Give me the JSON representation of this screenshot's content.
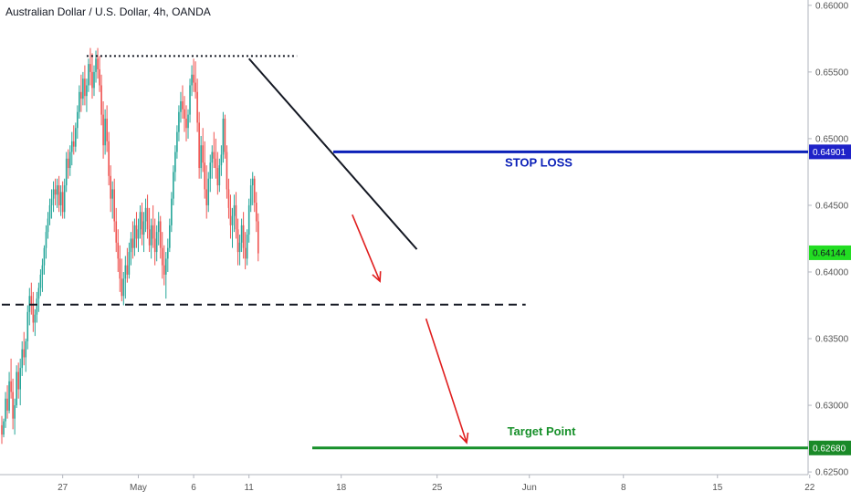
{
  "header": {
    "title": "Australian Dollar / U.S. Dollar, 4h, OANDA"
  },
  "chart_data": {
    "type": "candlestick",
    "title": "Australian Dollar / U.S. Dollar, 4h, OANDA",
    "y_axis": {
      "ylim": [
        0.6248,
        0.6604
      ],
      "ticks": [
        0.66,
        0.655,
        0.65,
        0.645,
        0.64,
        0.635,
        0.63,
        0.625
      ],
      "tick_labels": [
        "0.66000",
        "0.65500",
        "0.65000",
        "0.64500",
        "0.64000",
        "0.63500",
        "0.63000",
        "0.62500"
      ]
    },
    "x_axis": {
      "ticks": [
        {
          "label": "27",
          "bar": 33
        },
        {
          "label": "May",
          "bar": 74
        },
        {
          "label": "6",
          "bar": 104
        },
        {
          "label": "11",
          "bar": 134
        },
        {
          "label": "18",
          "bar": 184
        },
        {
          "label": "25",
          "bar": 236
        },
        {
          "label": "Jun",
          "bar": 286
        },
        {
          "label": "8",
          "bar": 337
        },
        {
          "label": "15",
          "bar": 388
        },
        {
          "label": "22",
          "bar": 438
        }
      ]
    },
    "price_badges": [
      {
        "label": "0.64901",
        "value": 0.64901,
        "color": "#1e22c8",
        "text_color": "#ffffff"
      },
      {
        "label": "0.64144",
        "value": 0.64144,
        "color": "#22dd22",
        "text_color": "#131722"
      },
      {
        "label": "0.62680",
        "value": 0.6268,
        "color": "#1a8a28",
        "text_color": "#ffffff"
      }
    ],
    "annotations": {
      "stop_loss": {
        "label": "STOP LOSS",
        "value": 0.64901,
        "color": "#0b20b8"
      },
      "target": {
        "label": "Target Point",
        "value": 0.6268,
        "color": "#17902a"
      },
      "resistance_dotted": {
        "value": 0.6562,
        "bar_start": 46,
        "bar_end": 160
      },
      "support_dashed": {
        "value": 0.63755,
        "bar_start": 0,
        "bar_end": 284
      },
      "trendline": {
        "from": {
          "bar": 134,
          "value": 0.656
        },
        "to": {
          "bar": 225,
          "value": 0.6417
        }
      },
      "arrows": [
        {
          "from": {
            "bar": 190,
            "value": 0.6443
          },
          "to": {
            "bar": 205,
            "value": 0.6393
          }
        },
        {
          "from": {
            "bar": 230,
            "value": 0.6365
          },
          "to": {
            "bar": 252,
            "value": 0.6272
          }
        }
      ]
    },
    "colors": {
      "up": "#26a69a",
      "down": "#ef5350"
    },
    "candles": [
      [
        0.6285,
        0.6292,
        0.6271,
        0.6278
      ],
      [
        0.6278,
        0.629,
        0.6276,
        0.6288
      ],
      [
        0.6288,
        0.631,
        0.6283,
        0.6305
      ],
      [
        0.6305,
        0.6315,
        0.629,
        0.6296
      ],
      [
        0.6296,
        0.6325,
        0.6294,
        0.6318
      ],
      [
        0.6318,
        0.6335,
        0.6305,
        0.631
      ],
      [
        0.631,
        0.632,
        0.6282,
        0.629
      ],
      [
        0.629,
        0.6305,
        0.6278,
        0.63
      ],
      [
        0.63,
        0.633,
        0.6298,
        0.6325
      ],
      [
        0.6325,
        0.6332,
        0.6305,
        0.6312
      ],
      [
        0.6312,
        0.6335,
        0.63,
        0.6328
      ],
      [
        0.6328,
        0.6348,
        0.6322,
        0.6342
      ],
      [
        0.6342,
        0.6355,
        0.633,
        0.6336
      ],
      [
        0.6336,
        0.635,
        0.6325,
        0.6348
      ],
      [
        0.6348,
        0.6375,
        0.6342,
        0.637
      ],
      [
        0.637,
        0.6388,
        0.636,
        0.6382
      ],
      [
        0.6382,
        0.6392,
        0.6368,
        0.6375
      ],
      [
        0.6375,
        0.6385,
        0.6355,
        0.6362
      ],
      [
        0.6362,
        0.6372,
        0.6352,
        0.6368
      ],
      [
        0.6368,
        0.6385,
        0.6362,
        0.638
      ],
      [
        0.638,
        0.6392,
        0.637,
        0.6388
      ],
      [
        0.6388,
        0.6402,
        0.6382,
        0.6398
      ],
      [
        0.6398,
        0.641,
        0.6385,
        0.6405
      ],
      [
        0.6405,
        0.642,
        0.6398,
        0.6418
      ],
      [
        0.6418,
        0.6435,
        0.641,
        0.643
      ],
      [
        0.643,
        0.6445,
        0.6425,
        0.644
      ],
      [
        0.644,
        0.6455,
        0.6435,
        0.645
      ],
      [
        0.645,
        0.6462,
        0.644,
        0.6455
      ],
      [
        0.6455,
        0.6468,
        0.6445,
        0.6462
      ],
      [
        0.6462,
        0.647,
        0.645,
        0.6458
      ],
      [
        0.6458,
        0.647,
        0.6448,
        0.6465
      ],
      [
        0.6465,
        0.6472,
        0.6445,
        0.645
      ],
      [
        0.645,
        0.6465,
        0.6442,
        0.646
      ],
      [
        0.646,
        0.6468,
        0.644,
        0.6445
      ],
      [
        0.6445,
        0.647,
        0.644,
        0.6465
      ],
      [
        0.6465,
        0.649,
        0.646,
        0.6485
      ],
      [
        0.6485,
        0.6492,
        0.647,
        0.6478
      ],
      [
        0.6478,
        0.6495,
        0.6472,
        0.649
      ],
      [
        0.649,
        0.6505,
        0.648,
        0.6498
      ],
      [
        0.6498,
        0.651,
        0.6488,
        0.6494
      ],
      [
        0.6494,
        0.6512,
        0.649,
        0.6508
      ],
      [
        0.6508,
        0.6525,
        0.65,
        0.652
      ],
      [
        0.652,
        0.654,
        0.6515,
        0.6535
      ],
      [
        0.6535,
        0.6548,
        0.652,
        0.653
      ],
      [
        0.653,
        0.655,
        0.6525,
        0.6545
      ],
      [
        0.6545,
        0.6555,
        0.6525,
        0.6532
      ],
      [
        0.6532,
        0.6545,
        0.652,
        0.654
      ],
      [
        0.654,
        0.656,
        0.6535,
        0.6556
      ],
      [
        0.6556,
        0.6568,
        0.654,
        0.655
      ],
      [
        0.655,
        0.6564,
        0.653,
        0.6538
      ],
      [
        0.6538,
        0.6555,
        0.6532,
        0.655
      ],
      [
        0.655,
        0.6566,
        0.6542,
        0.656
      ],
      [
        0.656,
        0.6568,
        0.6545,
        0.6552
      ],
      [
        0.6552,
        0.6562,
        0.6535,
        0.654
      ],
      [
        0.654,
        0.6548,
        0.651,
        0.6518
      ],
      [
        0.6518,
        0.6528,
        0.6485,
        0.6495
      ],
      [
        0.6495,
        0.6522,
        0.6488,
        0.6515
      ],
      [
        0.6515,
        0.6525,
        0.649,
        0.6498
      ],
      [
        0.6498,
        0.6505,
        0.6465,
        0.6472
      ],
      [
        0.6472,
        0.648,
        0.6445,
        0.6455
      ],
      [
        0.6455,
        0.6468,
        0.644,
        0.6462
      ],
      [
        0.6462,
        0.647,
        0.643,
        0.6438
      ],
      [
        0.6438,
        0.6448,
        0.6415,
        0.6422
      ],
      [
        0.6422,
        0.6432,
        0.64,
        0.641
      ],
      [
        0.641,
        0.642,
        0.6385,
        0.6395
      ],
      [
        0.6395,
        0.641,
        0.6378,
        0.6382
      ],
      [
        0.6382,
        0.64,
        0.6375,
        0.6395
      ],
      [
        0.6395,
        0.6412,
        0.638,
        0.6405
      ],
      [
        0.6405,
        0.6418,
        0.6392,
        0.6398
      ],
      [
        0.6398,
        0.6422,
        0.6395,
        0.6415
      ],
      [
        0.6415,
        0.643,
        0.6405,
        0.6425
      ],
      [
        0.6425,
        0.6438,
        0.641,
        0.6418
      ],
      [
        0.6418,
        0.644,
        0.6412,
        0.6435
      ],
      [
        0.6435,
        0.6445,
        0.6418,
        0.6425
      ],
      [
        0.6425,
        0.644,
        0.6415,
        0.6432
      ],
      [
        0.6432,
        0.645,
        0.6425,
        0.6445
      ],
      [
        0.6445,
        0.6452,
        0.642,
        0.6428
      ],
      [
        0.6428,
        0.6445,
        0.6415,
        0.6438
      ],
      [
        0.6438,
        0.6455,
        0.643,
        0.6448
      ],
      [
        0.6448,
        0.6458,
        0.6425,
        0.6432
      ],
      [
        0.6432,
        0.6448,
        0.6415,
        0.642
      ],
      [
        0.642,
        0.644,
        0.641,
        0.6435
      ],
      [
        0.6435,
        0.645,
        0.6418,
        0.6425
      ],
      [
        0.6425,
        0.644,
        0.6405,
        0.6415
      ],
      [
        0.6415,
        0.6435,
        0.6408,
        0.643
      ],
      [
        0.643,
        0.6445,
        0.642,
        0.6438
      ],
      [
        0.6438,
        0.6442,
        0.641,
        0.6418
      ],
      [
        0.6418,
        0.643,
        0.6395,
        0.6405
      ],
      [
        0.6405,
        0.642,
        0.639,
        0.6398
      ],
      [
        0.6398,
        0.6415,
        0.638,
        0.641
      ],
      [
        0.641,
        0.6425,
        0.64,
        0.6418
      ],
      [
        0.6418,
        0.644,
        0.6415,
        0.6435
      ],
      [
        0.6435,
        0.646,
        0.643,
        0.6455
      ],
      [
        0.6455,
        0.648,
        0.645,
        0.6475
      ],
      [
        0.6475,
        0.6495,
        0.6468,
        0.649
      ],
      [
        0.649,
        0.651,
        0.6485,
        0.6505
      ],
      [
        0.6505,
        0.6525,
        0.6498,
        0.652
      ],
      [
        0.652,
        0.6535,
        0.6512,
        0.6528
      ],
      [
        0.6528,
        0.654,
        0.6515,
        0.6522
      ],
      [
        0.6522,
        0.6532,
        0.6505,
        0.6515
      ],
      [
        0.6515,
        0.6525,
        0.6498,
        0.6508
      ],
      [
        0.6508,
        0.6522,
        0.65,
        0.6518
      ],
      [
        0.6518,
        0.6545,
        0.6512,
        0.654
      ],
      [
        0.654,
        0.6555,
        0.6532,
        0.6548
      ],
      [
        0.6548,
        0.656,
        0.6535,
        0.6542
      ],
      [
        0.6542,
        0.6558,
        0.653,
        0.6535
      ],
      [
        0.6535,
        0.6545,
        0.6505,
        0.6512
      ],
      [
        0.6512,
        0.652,
        0.647,
        0.6478
      ],
      [
        0.6478,
        0.6502,
        0.647,
        0.6495
      ],
      [
        0.6495,
        0.6508,
        0.6475,
        0.6482
      ],
      [
        0.6482,
        0.6498,
        0.6455,
        0.6462
      ],
      [
        0.6462,
        0.648,
        0.644,
        0.645
      ],
      [
        0.645,
        0.6475,
        0.6445,
        0.647
      ],
      [
        0.647,
        0.6488,
        0.646,
        0.6482
      ],
      [
        0.6482,
        0.6495,
        0.647,
        0.649
      ],
      [
        0.649,
        0.6505,
        0.6478,
        0.6485
      ],
      [
        0.6485,
        0.65,
        0.647,
        0.6478
      ],
      [
        0.6478,
        0.649,
        0.6458,
        0.6465
      ],
      [
        0.6465,
        0.6485,
        0.646,
        0.648
      ],
      [
        0.648,
        0.6495,
        0.6472,
        0.6488
      ],
      [
        0.6488,
        0.652,
        0.6482,
        0.6515
      ],
      [
        0.6515,
        0.6518,
        0.6485,
        0.649
      ],
      [
        0.649,
        0.6495,
        0.6455,
        0.6462
      ],
      [
        0.6462,
        0.647,
        0.644,
        0.6448
      ],
      [
        0.6448,
        0.6458,
        0.6425,
        0.6435
      ],
      [
        0.6435,
        0.6448,
        0.6418,
        0.6442
      ],
      [
        0.6442,
        0.6458,
        0.643,
        0.645
      ],
      [
        0.645,
        0.646,
        0.6425,
        0.6432
      ],
      [
        0.6432,
        0.644,
        0.6405,
        0.6415
      ],
      [
        0.6415,
        0.6428,
        0.6405,
        0.6422
      ],
      [
        0.6422,
        0.644,
        0.6415,
        0.6435
      ],
      [
        0.6435,
        0.6445,
        0.641,
        0.6418
      ],
      [
        0.6418,
        0.643,
        0.6402,
        0.641
      ],
      [
        0.641,
        0.6432,
        0.6405,
        0.6428
      ],
      [
        0.6428,
        0.6455,
        0.6422,
        0.645
      ],
      [
        0.645,
        0.647,
        0.6445,
        0.6465
      ],
      [
        0.6465,
        0.6475,
        0.645,
        0.647
      ],
      [
        0.647,
        0.6472,
        0.6445,
        0.6452
      ],
      [
        0.6452,
        0.646,
        0.643,
        0.6438
      ],
      [
        0.6438,
        0.6444,
        0.6408,
        0.6414
      ]
    ]
  }
}
